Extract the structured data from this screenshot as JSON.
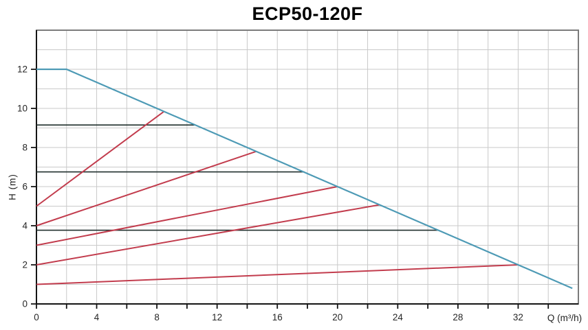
{
  "chart_data": {
    "type": "line",
    "title": "ECP50-120F",
    "xlabel": "Q (m³/h)",
    "ylabel": "H (m)",
    "xlim": [
      0,
      36
    ],
    "ylim": [
      0,
      14
    ],
    "grid": true,
    "legend": false,
    "x_grid_step": 2,
    "y_grid_step": 1,
    "x_ticks": {
      "step": 2,
      "labeled": [
        0,
        4,
        8,
        12,
        16,
        20,
        24,
        28,
        32
      ]
    },
    "y_ticks": {
      "step": 2,
      "labeled": [
        0,
        2,
        4,
        6,
        8,
        10,
        12
      ]
    },
    "colors": {
      "max_curve": "#4d9ab5",
      "speed_curves": "#c23c4d",
      "setting_lines": "#1f2e2b",
      "grid": "#c9c9c9",
      "frame": "#7b7b7b",
      "axis": "#141414",
      "tick_text": "#262626"
    },
    "series": [
      {
        "name": "setting-line-high",
        "color_key": "setting_lines",
        "width": 1.6,
        "points": [
          [
            0,
            9.15
          ],
          [
            10.55,
            9.15
          ]
        ]
      },
      {
        "name": "setting-line-mid",
        "color_key": "setting_lines",
        "width": 1.6,
        "points": [
          [
            0,
            6.75
          ],
          [
            17.8,
            6.75
          ]
        ]
      },
      {
        "name": "setting-line-low",
        "color_key": "setting_lines",
        "width": 1.6,
        "points": [
          [
            0,
            3.77
          ],
          [
            26.7,
            3.77
          ]
        ]
      },
      {
        "name": "speed-curve-1",
        "color_key": "speed_curves",
        "width": 2,
        "points": [
          [
            0,
            5
          ],
          [
            8.45,
            9.83
          ]
        ]
      },
      {
        "name": "speed-curve-2",
        "color_key": "speed_curves",
        "width": 2,
        "points": [
          [
            0,
            4
          ],
          [
            14.6,
            7.8
          ]
        ]
      },
      {
        "name": "speed-curve-3",
        "color_key": "speed_curves",
        "width": 2,
        "points": [
          [
            0,
            3
          ],
          [
            20,
            6
          ]
        ]
      },
      {
        "name": "speed-curve-4",
        "color_key": "speed_curves",
        "width": 2,
        "points": [
          [
            0,
            2
          ],
          [
            22.8,
            5.07
          ]
        ]
      },
      {
        "name": "speed-curve-5",
        "color_key": "speed_curves",
        "width": 2,
        "points": [
          [
            0,
            1
          ],
          [
            32,
            2
          ]
        ]
      },
      {
        "name": "max-speed-curve",
        "color_key": "max_curve",
        "width": 2.2,
        "points": [
          [
            0,
            12
          ],
          [
            2,
            12
          ],
          [
            35.6,
            0.8
          ]
        ]
      }
    ]
  }
}
